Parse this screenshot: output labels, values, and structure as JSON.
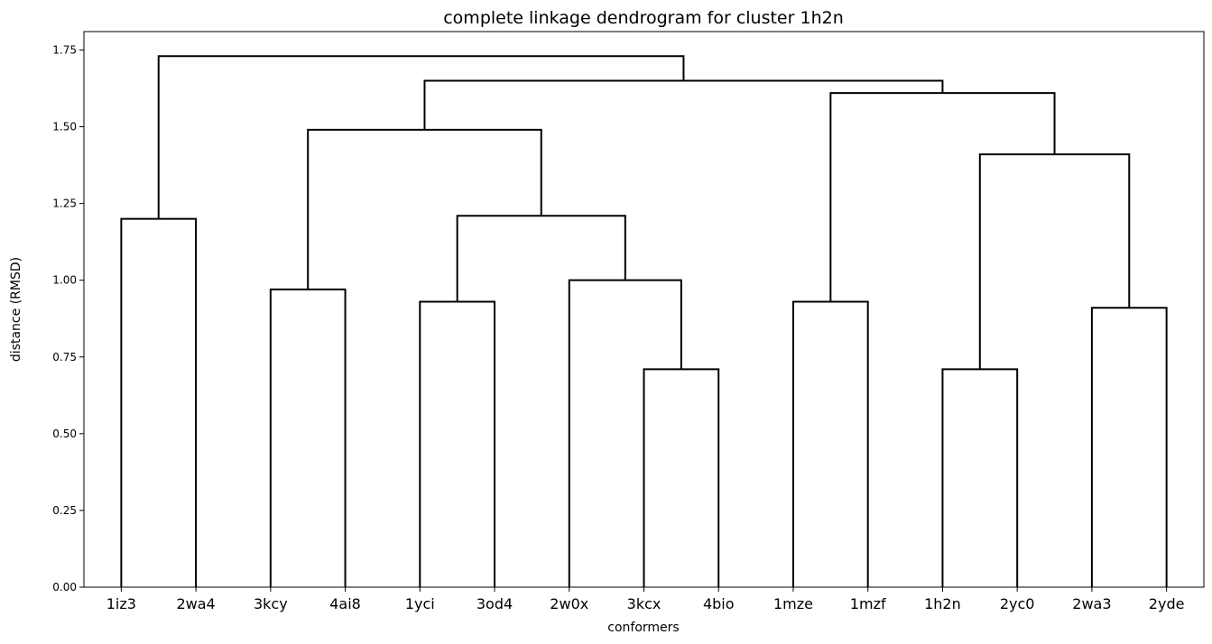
{
  "chart_data": {
    "type": "dendrogram",
    "title": "complete linkage dendrogram for cluster 1h2n",
    "xlabel": "conformers",
    "ylabel": "distance (RMSD)",
    "ylim": [
      0,
      1.81
    ],
    "yticks": [
      "0.00",
      "0.25",
      "0.50",
      "0.75",
      "1.00",
      "1.25",
      "1.50",
      "1.75"
    ],
    "ytick_values": [
      0,
      0.25,
      0.5,
      0.75,
      1.0,
      1.25,
      1.5,
      1.75
    ],
    "leaves": [
      "1iz3",
      "2wa4",
      "3kcy",
      "4ai8",
      "1yci",
      "3od4",
      "2w0x",
      "3kcx",
      "4bio",
      "1mze",
      "1mzf",
      "1h2n",
      "2yc0",
      "2wa3",
      "2yde"
    ],
    "merges": [
      {
        "left": "1iz3",
        "right": "2wa4",
        "height": 1.2
      },
      {
        "left": "3kcy",
        "right": "4ai8",
        "height": 0.97
      },
      {
        "left": "1yci",
        "right": "3od4",
        "height": 0.93
      },
      {
        "left": "3kcx",
        "right": "4bio",
        "height": 0.71
      },
      {
        "left": "2w0x",
        "right": "(3kcx,4bio)",
        "height": 1.0
      },
      {
        "left": "(1yci,3od4)",
        "right": "(2w0x,3kcx,4bio)",
        "height": 1.21
      },
      {
        "left": "(3kcy,4ai8)",
        "right": "(1yci...4bio)",
        "height": 1.49
      },
      {
        "left": "1mze",
        "right": "1mzf",
        "height": 0.93
      },
      {
        "left": "1h2n",
        "right": "2yc0",
        "height": 0.71
      },
      {
        "left": "2wa3",
        "right": "2yde",
        "height": 0.91
      },
      {
        "left": "(1h2n,2yc0)",
        "right": "(2wa3,2yde)",
        "height": 1.41
      },
      {
        "left": "(1mze,1mzf)",
        "right": "(1h2n...2yde)",
        "height": 1.61
      },
      {
        "left": "(3kcy...4bio)",
        "right": "(1mze...2yde)",
        "height": 1.65
      },
      {
        "left": "(1iz3,2wa4)",
        "right": "(3kcy...2yde)",
        "height": 1.73
      }
    ],
    "grid": false,
    "line_color": "#000000"
  }
}
